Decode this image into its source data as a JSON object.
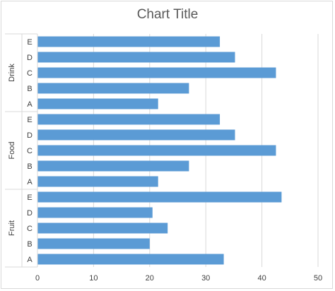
{
  "chart_data": {
    "type": "bar",
    "orientation": "horizontal",
    "title": "Chart Title",
    "groups": [
      {
        "name": "Drink",
        "categories": [
          "E",
          "D",
          "C",
          "B",
          "A"
        ],
        "values": [
          32.5,
          35.2,
          42.5,
          27.0,
          21.5
        ]
      },
      {
        "name": "Food",
        "categories": [
          "E",
          "D",
          "C",
          "B",
          "A"
        ],
        "values": [
          32.5,
          35.2,
          42.5,
          27.0,
          21.5
        ]
      },
      {
        "name": "Fruit",
        "categories": [
          "E",
          "D",
          "C",
          "B",
          "A"
        ],
        "values": [
          43.5,
          20.5,
          23.2,
          20.0,
          33.2
        ]
      }
    ],
    "xlim": [
      0,
      50
    ],
    "x_ticks": [
      0,
      10,
      20,
      30,
      40,
      50
    ],
    "grid": "vertical",
    "legend": "none",
    "bar_color": "#5b9bd5",
    "grid_color": "#d9d9d9",
    "text_color": "#404040"
  }
}
